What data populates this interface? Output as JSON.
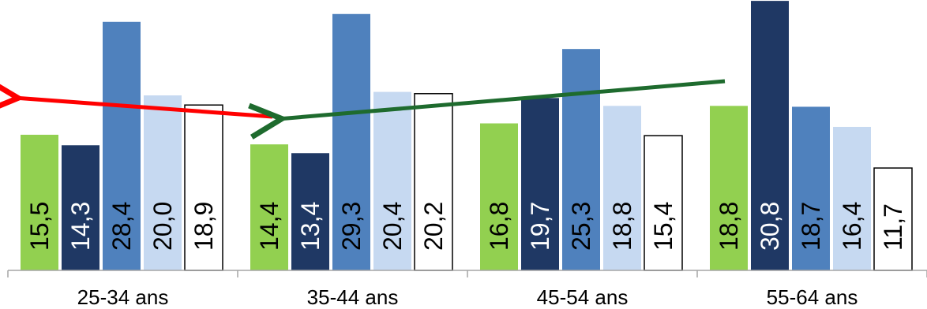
{
  "chart_data": {
    "type": "bar",
    "categories": [
      "25-34 ans",
      "35-44 ans",
      "45-54 ans",
      "55-64 ans"
    ],
    "series": [
      {
        "values": [
          15.5,
          14.4,
          16.8,
          18.8
        ],
        "color": "#92D050",
        "label_color": "#000000"
      },
      {
        "values": [
          14.3,
          13.4,
          19.7,
          30.8
        ],
        "color": "#1F3864",
        "label_color": "#FFFFFF"
      },
      {
        "values": [
          28.4,
          29.3,
          25.3,
          18.7
        ],
        "color": "#4F81BD",
        "label_color": "#000000"
      },
      {
        "values": [
          20.0,
          20.4,
          18.8,
          16.4
        ],
        "color": "#C6D9F1",
        "label_color": "#000000"
      },
      {
        "values": [
          18.9,
          20.2,
          15.4,
          11.7
        ],
        "color": "#FFFFFF",
        "outline": "#000000",
        "label_color": "#000000"
      }
    ],
    "data_labels": [
      [
        "15,5",
        "14,3",
        "28,4",
        "20,0",
        "18,9"
      ],
      [
        "14,4",
        "13,4",
        "29,3",
        "20,4",
        "20,2"
      ],
      [
        "16,8",
        "19,7",
        "25,3",
        "18,8",
        "15,4"
      ],
      [
        "18,8",
        "30,8",
        "18,7",
        "16,4",
        "11,7"
      ]
    ],
    "ylim": [
      0,
      30
    ],
    "annotations": [
      {
        "type": "arrow",
        "color": "#FF0000",
        "from_category": "35-44 ans",
        "to_category": "25-34 ans",
        "direction": "left"
      },
      {
        "type": "arrow",
        "color": "#1E6B2E",
        "from_category": "55-64 ans",
        "to_category": "35-44 ans",
        "direction": "left"
      }
    ]
  }
}
